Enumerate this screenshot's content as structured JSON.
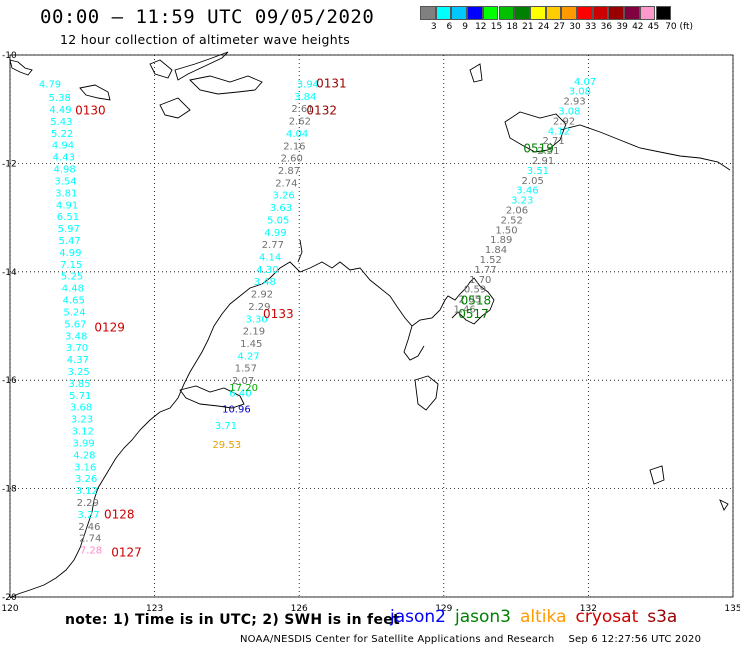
{
  "header": {
    "title": "00:00 – 11:59 UTC 09/05/2020",
    "subtitle": "12 hour collection of altimeter wave heights"
  },
  "color_scale": {
    "unit": "ft",
    "labels": [
      "3",
      "6",
      "9",
      "12",
      "15",
      "18",
      "21",
      "24",
      "27",
      "30",
      "33",
      "36",
      "39",
      "42",
      "45",
      "70 (ft)"
    ],
    "colors": [
      "#808080",
      "#00ffff",
      "#00c8ff",
      "#0000ff",
      "#00ff00",
      "#00c000",
      "#008000",
      "#ffff00",
      "#ffcc00",
      "#ff9900",
      "#ff0000",
      "#cc0000",
      "#990000",
      "#800040",
      "#ff99cc",
      "#000000"
    ]
  },
  "axes": {
    "lon_ticks": [
      "120",
      "123",
      "126",
      "129",
      "132",
      "135"
    ],
    "lat_ticks": [
      "-10",
      "-12",
      "-14",
      "-16",
      "-18",
      "-20"
    ]
  },
  "text_colors": {
    "gray": "#707070",
    "cyan": "#00ffff",
    "blue": "#0000cc",
    "green": "#00aa00",
    "orange": "#e6a000",
    "pink": "#ff88cc",
    "red": "#cc0000"
  },
  "tracks": [
    {
      "name": "jason2 cyan",
      "series": "cyan",
      "lon": 120.6,
      "lat": -10.6,
      "values": [
        "4.79"
      ]
    },
    {
      "name": "west-track",
      "pass": "0130",
      "lon_start": 120.8,
      "lat_start": -10.85,
      "lon_end": 121.45,
      "lat_end": -19.2,
      "values": [
        [
          "5.38",
          "cyan"
        ],
        [
          "4.49",
          "cyan"
        ],
        [
          "5.43",
          "cyan"
        ],
        [
          "5.22",
          "cyan"
        ],
        [
          "4.94",
          "cyan"
        ],
        [
          "4.43",
          "cyan"
        ],
        [
          "4.98",
          "cyan"
        ],
        [
          "3.54",
          "cyan"
        ],
        [
          "3.81",
          "cyan"
        ],
        [
          "4.91",
          "cyan"
        ],
        [
          "6.51",
          "cyan"
        ],
        [
          "5.97",
          "cyan"
        ],
        [
          "5.47",
          "cyan"
        ],
        [
          "4.99",
          "cyan"
        ],
        [
          "7.15",
          "cyan"
        ],
        [
          "5.25",
          "cyan"
        ],
        [
          "4.48",
          "cyan"
        ],
        [
          "4.65",
          "cyan"
        ],
        [
          "5.24",
          "cyan"
        ],
        [
          "5.67",
          "cyan"
        ],
        [
          "3.48",
          "cyan"
        ],
        [
          "3.70",
          "cyan"
        ],
        [
          "4.37",
          "cyan"
        ],
        [
          "3.25",
          "cyan"
        ],
        [
          "3.85",
          "cyan"
        ],
        [
          "5.71",
          "cyan"
        ],
        [
          "3.68",
          "cyan"
        ],
        [
          "3.23",
          "cyan"
        ],
        [
          "3.12",
          "cyan"
        ],
        [
          "3.99",
          "cyan"
        ],
        [
          "4.28",
          "cyan"
        ],
        [
          "3.16",
          "cyan"
        ],
        [
          "3.26",
          "cyan"
        ],
        [
          "3.12",
          "cyan"
        ],
        [
          "2.29",
          "gray"
        ],
        [
          "3.27",
          "cyan"
        ],
        [
          "2.46",
          "gray"
        ],
        [
          "2.74",
          "gray"
        ],
        [
          "7.28",
          "pink"
        ]
      ]
    },
    {
      "name": "mid-track",
      "lon_start": 125.95,
      "lat_start": -10.6,
      "lon_end": 124.55,
      "lat_end": -16.3,
      "values": [
        [
          "3.94",
          "cyan"
        ],
        [
          "3.84",
          "cyan"
        ],
        [
          "2.61",
          "gray"
        ],
        [
          "2.62",
          "gray"
        ],
        [
          "4.04",
          "cyan"
        ],
        [
          "2.16",
          "gray"
        ],
        [
          "2.60",
          "gray"
        ],
        [
          "2.87",
          "gray"
        ],
        [
          "2.74",
          "gray"
        ],
        [
          "3.26",
          "cyan"
        ],
        [
          "3.63",
          "cyan"
        ],
        [
          "5.05",
          "cyan"
        ],
        [
          "4.99",
          "cyan"
        ],
        [
          "2.77",
          "gray"
        ],
        [
          "4.14",
          "cyan"
        ],
        [
          "4.30",
          "cyan"
        ],
        [
          "3.48",
          "cyan"
        ],
        [
          "2.92",
          "gray"
        ],
        [
          "2.29",
          "gray"
        ],
        [
          "3.30",
          "cyan"
        ],
        [
          "2.19",
          "gray"
        ],
        [
          "1.45",
          "gray"
        ],
        [
          "4.27",
          "cyan"
        ],
        [
          "1.57",
          "gray"
        ],
        [
          "2.07",
          "gray"
        ],
        [
          "6.40",
          "cyan"
        ]
      ]
    },
    {
      "name": "east-track",
      "lon_start": 131.7,
      "lat_start": -10.55,
      "lon_end": 129.2,
      "lat_end": -14.75,
      "values": [
        [
          "4.07",
          "cyan"
        ],
        [
          "3.08",
          "cyan"
        ],
        [
          "2.93",
          "gray"
        ],
        [
          "3.08",
          "cyan"
        ],
        [
          "2.92",
          "gray"
        ],
        [
          "4.12",
          "cyan"
        ],
        [
          "2.71",
          "gray"
        ],
        [
          "2.51",
          "gray"
        ],
        [
          "2.91",
          "gray"
        ],
        [
          "3.51",
          "cyan"
        ],
        [
          "2.05",
          "gray"
        ],
        [
          "3.46",
          "cyan"
        ],
        [
          "3.23",
          "cyan"
        ],
        [
          "2.06",
          "gray"
        ],
        [
          "2.52",
          "gray"
        ],
        [
          "1.50",
          "gray"
        ],
        [
          "1.89",
          "gray"
        ],
        [
          "1.84",
          "gray"
        ],
        [
          "1.52",
          "gray"
        ],
        [
          "1.77",
          "gray"
        ],
        [
          "1.70",
          "gray"
        ],
        [
          "0.59",
          "gray"
        ],
        [
          "2.05",
          "gray"
        ],
        [
          "1.46",
          "gray"
        ]
      ]
    }
  ],
  "singles": [
    {
      "text": "17.20",
      "color": "green",
      "lon": 124.55,
      "lat": -16.2
    },
    {
      "text": "10.96",
      "color": "blue",
      "lon": 124.4,
      "lat": -16.6
    },
    {
      "text": "3.71",
      "color": "cyan",
      "lon": 124.25,
      "lat": -16.9
    },
    {
      "text": "29.53",
      "color": "orange",
      "lon": 124.2,
      "lat": -17.25
    }
  ],
  "pass_labels": [
    {
      "text": "0131",
      "color": "#990000",
      "lon": 126.35,
      "lat": -10.6
    },
    {
      "text": "0130",
      "color": "#cc0000",
      "lon": 121.35,
      "lat": -11.1
    },
    {
      "text": "0132",
      "color": "#990000",
      "lon": 126.15,
      "lat": -11.1
    },
    {
      "text": "0519",
      "color": "#008000",
      "lon": 130.65,
      "lat": -11.8
    },
    {
      "text": "0518",
      "color": "#008000",
      "lon": 129.35,
      "lat": -14.6
    },
    {
      "text": "0517",
      "color": "#008000",
      "lon": 129.3,
      "lat": -14.85
    },
    {
      "text": "0133",
      "color": "#cc0000",
      "lon": 125.25,
      "lat": -14.85
    },
    {
      "text": "0129",
      "color": "#cc0000",
      "lon": 121.75,
      "lat": -15.1
    },
    {
      "text": "0128",
      "color": "#cc0000",
      "lon": 121.95,
      "lat": -18.55
    },
    {
      "text": "0127",
      "color": "#cc0000",
      "lon": 122.1,
      "lat": -19.25
    }
  ],
  "footer": {
    "note": "note:  1) Time is in UTC;  2) SWH is in feet",
    "missions": [
      {
        "label": "jason2",
        "color": "#0000ff"
      },
      {
        "label": "jason3",
        "color": "#008000"
      },
      {
        "label": "altika",
        "color": "#ff9900"
      },
      {
        "label": "cryosat",
        "color": "#cc0000"
      },
      {
        "label": "s3a",
        "color": "#990000"
      }
    ],
    "credit": "NOAA/NESDIS Center for Satellite Applications and Research",
    "timestamp": "Sep  6 12:27:56 UTC 2020"
  }
}
